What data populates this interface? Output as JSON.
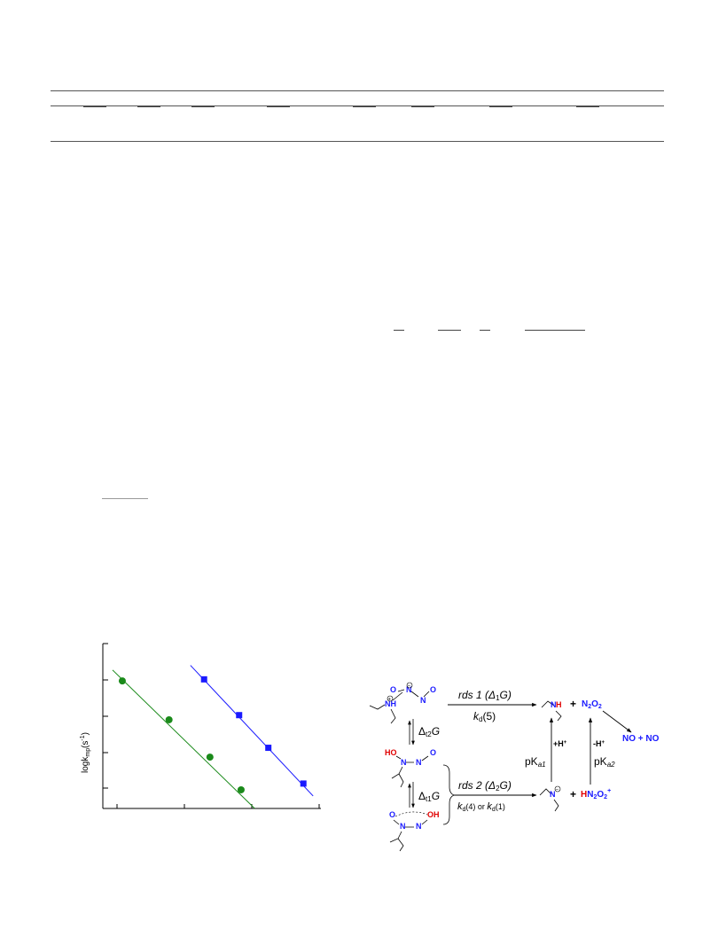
{
  "chart_data": {
    "type": "scatter",
    "ylabel": "logk",
    "ylabel_sub": "mp",
    "ylabel_unit": "(s",
    "ylabel_exp": "-1",
    "ylabel_close": ")",
    "series": [
      {
        "color": "#1a8a1a",
        "marker": "circle",
        "points": [
          [
            0.2,
            6.1
          ],
          [
            1.4,
            4.85
          ],
          [
            2.45,
            3.65
          ],
          [
            3.25,
            2.6
          ]
        ],
        "fit": [
          [
            -0.05,
            6.45
          ],
          [
            3.6,
            2.0
          ]
        ]
      },
      {
        "color": "#1a1aff",
        "marker": "square",
        "points": [
          [
            2.3,
            6.15
          ],
          [
            3.2,
            5.0
          ],
          [
            3.95,
            3.95
          ],
          [
            4.85,
            2.8
          ]
        ],
        "fit": [
          [
            1.95,
            6.6
          ],
          [
            5.1,
            2.4
          ]
        ]
      }
    ],
    "xlim": [
      -0.3,
      5.3
    ],
    "ylim": [
      2.0,
      7.3
    ]
  },
  "scheme": {
    "o": "O",
    "n": "N",
    "nh": "NH",
    "ho": "HO",
    "oh": "OH",
    "plus_charge": "+",
    "minus_charge": "−",
    "rds1": "rds 1 (Δ",
    "rds1_sub": "1",
    "rds1_end": "G)",
    "kd5": "k",
    "kd5_sub": "d",
    "kd5_arg": "(5)",
    "dt2": "Δ",
    "dt2_sub": "t2",
    "dt2_end": "G",
    "dt1": "Δ",
    "dt1_sub": "t1",
    "dt1_end": "G",
    "rds2": "rds 2 (Δ",
    "rds2_sub": "2",
    "rds2_end": "G)",
    "kd4": "k",
    "kd4_sub": "d",
    "kd4_arg": "(4) or ",
    "kd1": "k",
    "kd1_sub": "d",
    "kd1_arg": "(1)",
    "plus": "+",
    "n2o2": "N",
    "n2o2_sub": "2",
    "n2o2_end": "O",
    "n2o2_sub2": "2",
    "no_no": "NO + NO",
    "h_plus": "+H",
    "h_plus_sup": "+",
    "h_minus": "-H",
    "h_minus_sup": "+",
    "pka1": "pK",
    "pka1_sub": "a1",
    "pka2": "pK",
    "pka2_sub": "a2",
    "hn2o2": "HN",
    "hn2o2_h": "H",
    "hn2o2_n": "N",
    "hn2o2_sub": "2",
    "hn2o2_o": "O",
    "hn2o2_sub2": "2",
    "hn2o2_sup": "+"
  },
  "colors": {
    "blue": "#1a1aff",
    "red": "#e00000",
    "green": "#1a8a1a"
  }
}
